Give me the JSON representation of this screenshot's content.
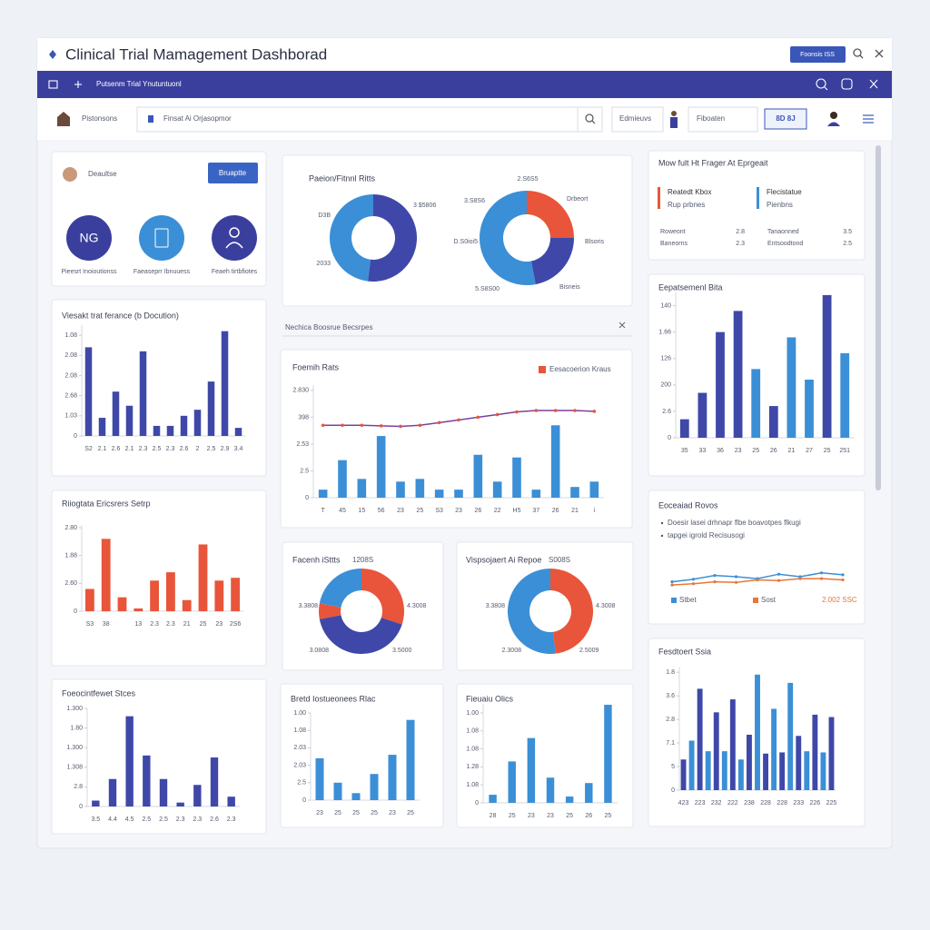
{
  "header": {
    "title": "Clinical Trial Mamagement Dashborad",
    "button": "Foonsis ISS"
  },
  "nav": {
    "text": "Putsenm Trial Ynutuntuonl"
  },
  "toolbar": {
    "label": "Pistonsons",
    "search": "Finsat Ai Orjasopmor",
    "tabs": [
      "Edmieuvs",
      "Fiboaten",
      "8D 8J"
    ]
  },
  "profile": {
    "name": "Deaultse",
    "button": "Bruaptte",
    "badge": "NG",
    "labels": [
      "Pieesrt Inoioutionss",
      "Faeaseprr Ibnuuess",
      "Feaeh tirtbfiotes"
    ]
  },
  "summary": {
    "title": "Mow fult Ht Frager At Eprgeait",
    "legend": [
      {
        "name": "Reatedt Kbox",
        "sub": "Rup prbnes",
        "color": "#e8553a"
      },
      {
        "name": "Flecistatue",
        "sub": "Pienbns",
        "color": "#3b8fd6"
      }
    ],
    "rows": [
      [
        "Roweont",
        2.8,
        "Tanaonned",
        3.5
      ],
      [
        "Baneorns",
        2.3,
        "Entsoodtond",
        2.5
      ]
    ]
  },
  "filter": {
    "text": "Nechica Boosrue Becsrpes"
  },
  "chart_data": [
    {
      "type": "bar",
      "title": "Viesakt trat ferance (b Docution)",
      "color": "#3f48a8",
      "categories": [
        "S2",
        "2.1",
        "2.6",
        "2.1",
        "2.3",
        "2.5",
        "2.3",
        "2.6",
        "2",
        "2.5",
        "2.9",
        "3.4"
      ],
      "values": [
        4.4,
        0.9,
        2.2,
        1.5,
        4.2,
        0.5,
        0.5,
        1.0,
        1.3,
        2.7,
        5.2,
        0.4
      ],
      "ylim": [
        0,
        5.5
      ],
      "yticks": [
        0,
        {
          "value": 1,
          "label": "1.03"
        },
        {
          "value": 2,
          "label": "2.68"
        },
        {
          "value": 3,
          "label": "2.08"
        },
        {
          "value": 4,
          "label": "2.08"
        },
        {
          "value": 5,
          "label": "1.08"
        }
      ]
    },
    {
      "type": "donut",
      "title": "Paeion/Fitnnl Ritts",
      "values": [
        52,
        48
      ],
      "colors": [
        "#3f48a8",
        "#3b8fd6"
      ],
      "annotations": [
        "3 $5806",
        "D3B",
        "2033"
      ]
    },
    {
      "type": "donut",
      "values": [
        25,
        22,
        53
      ],
      "colors": [
        "#e8553a",
        "#3f48a8",
        "#3b8fd6"
      ],
      "annotations": [
        "2.S6S5",
        "3.S8S6",
        "Drbeort",
        "D.S0ioi5",
        "Blsoris",
        "5.S8S00",
        "Bisneis"
      ]
    },
    {
      "type": "bar",
      "title": "Eepatsemenl Bita",
      "colors": [
        "#3f48a8",
        "#3f48a8",
        "#3f48a8",
        "#3f48a8",
        "#3b8fd6",
        "#3f48a8",
        "#3b8fd6",
        "#3b8fd6",
        "#3f48a8",
        "#3b8fd6"
      ],
      "categories": [
        "35",
        "33",
        "36",
        "23",
        "25",
        "26",
        "21",
        "27",
        "25",
        "251"
      ],
      "values": [
        0.7,
        1.7,
        4.0,
        4.8,
        2.6,
        1.2,
        3.8,
        2.2,
        5.4,
        3.2
      ],
      "ylim": [
        0,
        5.5
      ],
      "yticks": [
        0,
        {
          "value": 1,
          "label": "2.6"
        },
        {
          "value": 2,
          "label": "200"
        },
        {
          "value": 3,
          "label": "126"
        },
        {
          "value": 4,
          "label": "1.66"
        },
        {
          "value": 5,
          "label": "140"
        }
      ]
    },
    {
      "type": "bar_line",
      "title": "Foemih Rats",
      "color": "#3b8fd6",
      "categories": [
        "T",
        "45",
        "15",
        "56",
        "23",
        "25",
        "S3",
        "23",
        "26",
        "22",
        "H5",
        "37",
        "26",
        "21",
        "i"
      ],
      "values": [
        0.3,
        1.4,
        0.7,
        2.3,
        0.6,
        0.7,
        0.3,
        0.3,
        1.6,
        0.6,
        1.5,
        0.3,
        2.7,
        0.4,
        0.6
      ],
      "line": {
        "name": "Eesacoerion Kraus",
        "color": "#7b3fa0",
        "marker_color": "#e8553a",
        "values": [
          2.7,
          2.7,
          2.7,
          2.68,
          2.66,
          2.7,
          2.8,
          2.9,
          3.0,
          3.1,
          3.2,
          3.25,
          3.25,
          3.25,
          3.22
        ]
      },
      "ylim": [
        0,
        4.2
      ],
      "yticks": [
        0,
        {
          "value": 1,
          "label": "2.5"
        },
        {
          "value": 2,
          "label": "2.53"
        },
        {
          "value": 3,
          "label": "398"
        },
        {
          "value": 4,
          "label": "2.830"
        }
      ]
    },
    {
      "type": "bar",
      "title": "Riiogtata Ericsrers Setrp",
      "color": "#e8553a",
      "categories": [
        "S3",
        "38",
        null,
        "13",
        "2.3",
        "2.3",
        "21",
        "25",
        "23",
        "2S6"
      ],
      "values": [
        0.8,
        2.6,
        0.5,
        0.1,
        1.1,
        1.4,
        0.4,
        2.4,
        1.1,
        1.2
      ],
      "ylim": [
        0,
        3.1
      ],
      "yticks": [
        0,
        {
          "value": 1,
          "label": "2.60"
        },
        {
          "value": 2,
          "label": "1.88"
        },
        {
          "value": 3,
          "label": "2.80"
        }
      ]
    },
    {
      "type": "donut",
      "title": "Facenh iSttts",
      "subtitle": "1208S",
      "values": [
        30,
        42,
        6,
        22
      ],
      "colors": [
        "#e8553a",
        "#3f48a8",
        "#e8553a",
        "#3b8fd6"
      ],
      "annotations": [
        "3.3808",
        "4.3008",
        "3.0808",
        "3.5000"
      ]
    },
    {
      "type": "donut",
      "title": "Vispsojaert Ai Repoe",
      "subtitle": "S008S",
      "values": [
        48,
        52
      ],
      "colors": [
        "#e8553a",
        "#3b8fd6"
      ],
      "annotations": [
        "3.3808",
        "4.3008",
        "2.3008",
        "2.5009"
      ]
    },
    {
      "type": "line",
      "title": "Eoceaiad Rovos",
      "notes": [
        "Doesir lasei drhnapr flbe boavotpes flkugi",
        "tapgei igrold Recisusogi"
      ],
      "annotation": "2.002 SSC",
      "ylim": [
        0,
        10
      ],
      "series": [
        {
          "name": "Stbet",
          "color": "#3b8fd6",
          "values": [
            4.2,
            4.6,
            5.2,
            5.0,
            4.7,
            5.4,
            5.0,
            5.6,
            5.3
          ]
        },
        {
          "name": "Sost",
          "color": "#e8763a",
          "values": [
            3.7,
            3.9,
            4.2,
            4.1,
            4.5,
            4.4,
            4.7,
            4.7,
            4.5
          ]
        }
      ]
    },
    {
      "type": "bar",
      "title": "Foeocintfewet Stces",
      "color": "#3f48a8",
      "categories": [
        "3.5",
        "4.4",
        "4.5",
        "2.5",
        "2.5",
        "2.3",
        "2.3",
        "2.6",
        "2.3"
      ],
      "values": [
        0.3,
        1.4,
        4.6,
        2.6,
        1.4,
        0.2,
        1.1,
        2.5,
        0.5
      ],
      "ylim": [
        0,
        5
      ],
      "yticks": [
        0,
        {
          "value": 1,
          "label": "2.8"
        },
        {
          "value": 2,
          "label": "1.308"
        },
        {
          "value": 3,
          "label": "1.300"
        },
        {
          "value": 4,
          "label": "1.80"
        },
        {
          "value": 5,
          "label": "1.300"
        }
      ]
    },
    {
      "type": "bar",
      "title": "Bretd Iostueonees Rlac",
      "color": "#3b8fd6",
      "categories": [
        "23",
        "25",
        "25",
        "25",
        "23",
        "25"
      ],
      "values": [
        2.4,
        1.0,
        0.4,
        1.5,
        2.6,
        4.6
      ],
      "ylim": [
        0,
        5
      ],
      "yticks": [
        0,
        {
          "value": 1,
          "label": "2.5"
        },
        {
          "value": 2,
          "label": "2.03"
        },
        {
          "value": 3,
          "label": "2.03"
        },
        {
          "value": 4,
          "label": "1.08"
        },
        {
          "value": 5,
          "label": "1.00"
        }
      ]
    },
    {
      "type": "bar",
      "title": "Fieuaiu Olics",
      "color": "#3b8fd6",
      "categories": [
        "28",
        "25",
        "23",
        "23",
        "25",
        "26",
        "25"
      ],
      "values": [
        0.45,
        2.3,
        3.6,
        1.4,
        0.35,
        1.1,
        5.45
      ],
      "ylim": [
        0,
        5.5
      ],
      "yticks": [
        0,
        {
          "value": 1,
          "label": "1.08"
        },
        {
          "value": 2,
          "label": "1.28"
        },
        {
          "value": 3,
          "label": "1.08"
        },
        {
          "value": 4,
          "label": "1.08"
        },
        {
          "value": 5,
          "label": "1.00"
        }
      ]
    },
    {
      "type": "bar",
      "title": "Fesdtoert Ssia",
      "colors": [
        "#3f48a8",
        "#3b8fd6",
        "#3f48a8",
        "#3b8fd6",
        "#3f48a8",
        "#3b8fd6",
        "#3f48a8",
        "#3b8fd6",
        "#3f48a8",
        "#3b8fd6",
        "#3f48a8",
        "#3b8fd6",
        "#3f48a8",
        "#3b8fd6",
        "#3f48a8",
        "#3b8fd6",
        "#3f48a8",
        "#3b8fd6",
        "#3f48a8"
      ],
      "categories": [
        "423",
        null,
        "223",
        null,
        "232",
        null,
        "222",
        null,
        "238",
        null,
        "228",
        null,
        "228",
        null,
        "233",
        null,
        "226",
        null,
        "225"
      ],
      "values": [
        1.3,
        2.1,
        4.3,
        1.65,
        3.3,
        1.65,
        3.85,
        1.3,
        2.35,
        4.9,
        1.55,
        3.45,
        1.6,
        4.55,
        2.3,
        1.65,
        3.2,
        1.6,
        3.1
      ],
      "ylim": [
        0,
        5.2
      ],
      "yticks": [
        0,
        {
          "value": 1,
          "label": "5"
        },
        {
          "value": 2,
          "label": "7.1"
        },
        {
          "value": 3,
          "label": "2.8"
        },
        {
          "value": 4,
          "label": "3.6"
        },
        {
          "value": 5,
          "label": "1.8"
        }
      ]
    }
  ]
}
